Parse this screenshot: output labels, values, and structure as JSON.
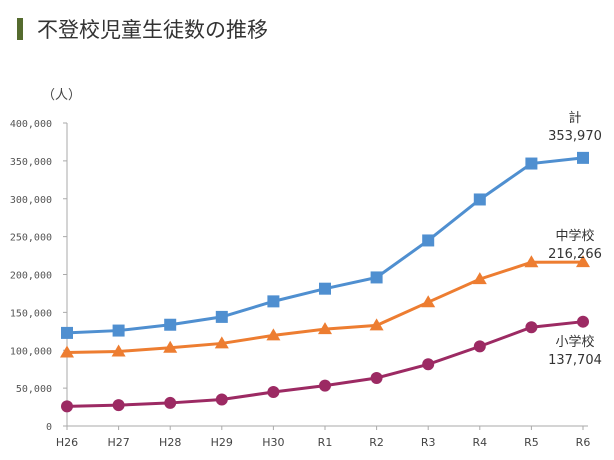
{
  "chart_data": {
    "type": "line",
    "title": "不登校児童生徒数の推移",
    "ylabel": "（人）",
    "ylim": [
      0,
      400000
    ],
    "yticks": [
      "0",
      "50,000",
      "100,000",
      "150,000",
      "200,000",
      "250,000",
      "300,000",
      "350,000",
      "400,000"
    ],
    "categories": [
      "H26",
      "H27",
      "H28",
      "H29",
      "H30",
      "R1",
      "R2",
      "R3",
      "R4",
      "R5",
      "R6"
    ],
    "series": [
      {
        "name": "計",
        "final_label": "353,970",
        "color": "#4f8fd0",
        "marker": "square",
        "values": [
          122897,
          125991,
          133683,
          144031,
          164528,
          181272,
          196127,
          244940,
          299048,
          346482,
          353970
        ]
      },
      {
        "name": "中学校",
        "final_label": "216,266",
        "color": "#ed7d31",
        "marker": "triangle",
        "values": [
          97033,
          98408,
          103235,
          108999,
          119687,
          127922,
          132777,
          163442,
          193936,
          216112,
          216266
        ]
      },
      {
        "name": "小学校",
        "final_label": "137,704",
        "color": "#9c2a63",
        "marker": "circle",
        "values": [
          25864,
          27583,
          30448,
          35032,
          44841,
          53350,
          63350,
          81498,
          105112,
          130370,
          137704
        ]
      }
    ]
  }
}
